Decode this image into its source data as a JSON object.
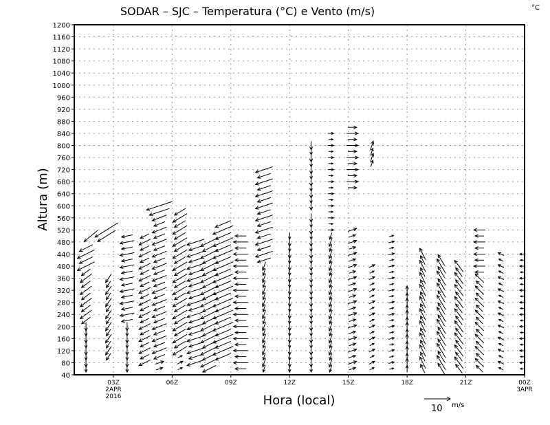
{
  "chart_data": {
    "type": "vector",
    "title": "SODAR – SJC – Temperatura (°C) e Vento (m/s)",
    "corner_unit": "°C",
    "xlabel": "Hora (local)",
    "ylabel": "Altura (m)",
    "xlim": [
      1,
      24
    ],
    "ylim": [
      40,
      1200
    ],
    "grid": true,
    "yticks": [
      40,
      80,
      120,
      160,
      200,
      240,
      280,
      320,
      360,
      400,
      440,
      480,
      520,
      560,
      600,
      640,
      680,
      720,
      760,
      800,
      840,
      880,
      920,
      960,
      1000,
      1040,
      1080,
      1120,
      1160,
      1200
    ],
    "xticks": [
      {
        "hour": 3,
        "label": "03Z",
        "sub1": "2APR",
        "sub2": "2016"
      },
      {
        "hour": 6,
        "label": "06Z"
      },
      {
        "hour": 9,
        "label": "09Z"
      },
      {
        "hour": 12,
        "label": "12Z"
      },
      {
        "hour": 15,
        "label": "15Z"
      },
      {
        "hour": 18,
        "label": "18Z"
      },
      {
        "hour": 21,
        "label": "21Z"
      },
      {
        "hour": 24,
        "label": "00Z",
        "sub1": "3APR"
      }
    ],
    "reference_vector": {
      "value": 10,
      "label": "10",
      "unit": "m/s"
    },
    "height_step": 20,
    "columns": [
      {
        "hour": 1.6,
        "segments": [
          [
            60,
            200,
            0,
            -3
          ],
          [
            220,
            380,
            -4,
            -3
          ],
          [
            400,
            460,
            -6,
            -3
          ]
        ]
      },
      {
        "hour": 1.85,
        "segments": [
          [
            500,
            500,
            -6,
            -5
          ]
        ]
      },
      {
        "hour": 2.65,
        "segments": [
          [
            500,
            520,
            -8,
            -5
          ]
        ]
      },
      {
        "hour": 2.75,
        "segments": [
          [
            100,
            360,
            -2,
            -3
          ]
        ]
      },
      {
        "hour": 3.7,
        "segments": [
          [
            60,
            200,
            0,
            -3
          ],
          [
            220,
            500,
            -5,
            -1
          ]
        ]
      },
      {
        "hour": 4.6,
        "segments": [
          [
            80,
            500,
            -4,
            -2
          ]
        ]
      },
      {
        "hour": 5.35,
        "segments": [
          [
            60,
            80,
            3,
            1
          ],
          [
            100,
            560,
            -5,
            -2
          ],
          [
            580,
            600,
            -9,
            -3
          ]
        ]
      },
      {
        "hour": 6.4,
        "segments": [
          [
            60,
            100,
            2,
            1
          ],
          [
            120,
            580,
            -5,
            -3
          ]
        ]
      },
      {
        "hour": 7.2,
        "segments": [
          [
            80,
            480,
            -6,
            -2
          ]
        ]
      },
      {
        "hour": 7.9,
        "segments": [
          [
            60,
            480,
            -6,
            -3
          ]
        ]
      },
      {
        "hour": 8.6,
        "segments": [
          [
            100,
            540,
            -7,
            -3
          ]
        ]
      },
      {
        "hour": 9.5,
        "segments": [
          [
            60,
            500,
            -5,
            0
          ]
        ]
      },
      {
        "hour": 10.7,
        "segments": [
          [
            60,
            400,
            -1,
            -3
          ],
          [
            420,
            720,
            -6,
            -2
          ]
        ]
      },
      {
        "hour": 12.0,
        "segments": [
          [
            60,
            500,
            0,
            -3
          ]
        ]
      },
      {
        "hour": 13.1,
        "segments": [
          [
            60,
            560,
            0,
            -3
          ],
          [
            600,
            800,
            0,
            -3
          ]
        ]
      },
      {
        "hour": 14.1,
        "segments": [
          [
            60,
            500,
            -1,
            -3
          ],
          [
            520,
            840,
            2,
            0
          ]
        ]
      },
      {
        "hour": 15.2,
        "segments": [
          [
            60,
            520,
            3,
            1
          ],
          [
            660,
            860,
            4,
            0
          ]
        ]
      },
      {
        "hour": 16.2,
        "segments": [
          [
            60,
            400,
            2,
            1
          ],
          [
            740,
            800,
            1,
            3
          ]
        ]
      },
      {
        "hour": 17.2,
        "segments": [
          [
            60,
            500,
            2,
            0.5
          ]
        ]
      },
      {
        "hour": 18.0,
        "segments": [
          [
            60,
            320,
            0,
            3
          ]
        ]
      },
      {
        "hour": 18.8,
        "segments": [
          [
            60,
            440,
            -2,
            4
          ]
        ]
      },
      {
        "hour": 19.75,
        "segments": [
          [
            60,
            420,
            -3,
            5
          ]
        ]
      },
      {
        "hour": 20.65,
        "segments": [
          [
            60,
            400,
            -3,
            4
          ]
        ]
      },
      {
        "hour": 21.7,
        "segments": [
          [
            60,
            360,
            -3,
            3
          ],
          [
            380,
            520,
            -4,
            0
          ]
        ]
      },
      {
        "hour": 22.8,
        "segments": [
          [
            60,
            440,
            -2,
            1
          ]
        ]
      },
      {
        "hour": 23.9,
        "segments": [
          [
            60,
            440,
            -2,
            0
          ]
        ]
      }
    ]
  }
}
